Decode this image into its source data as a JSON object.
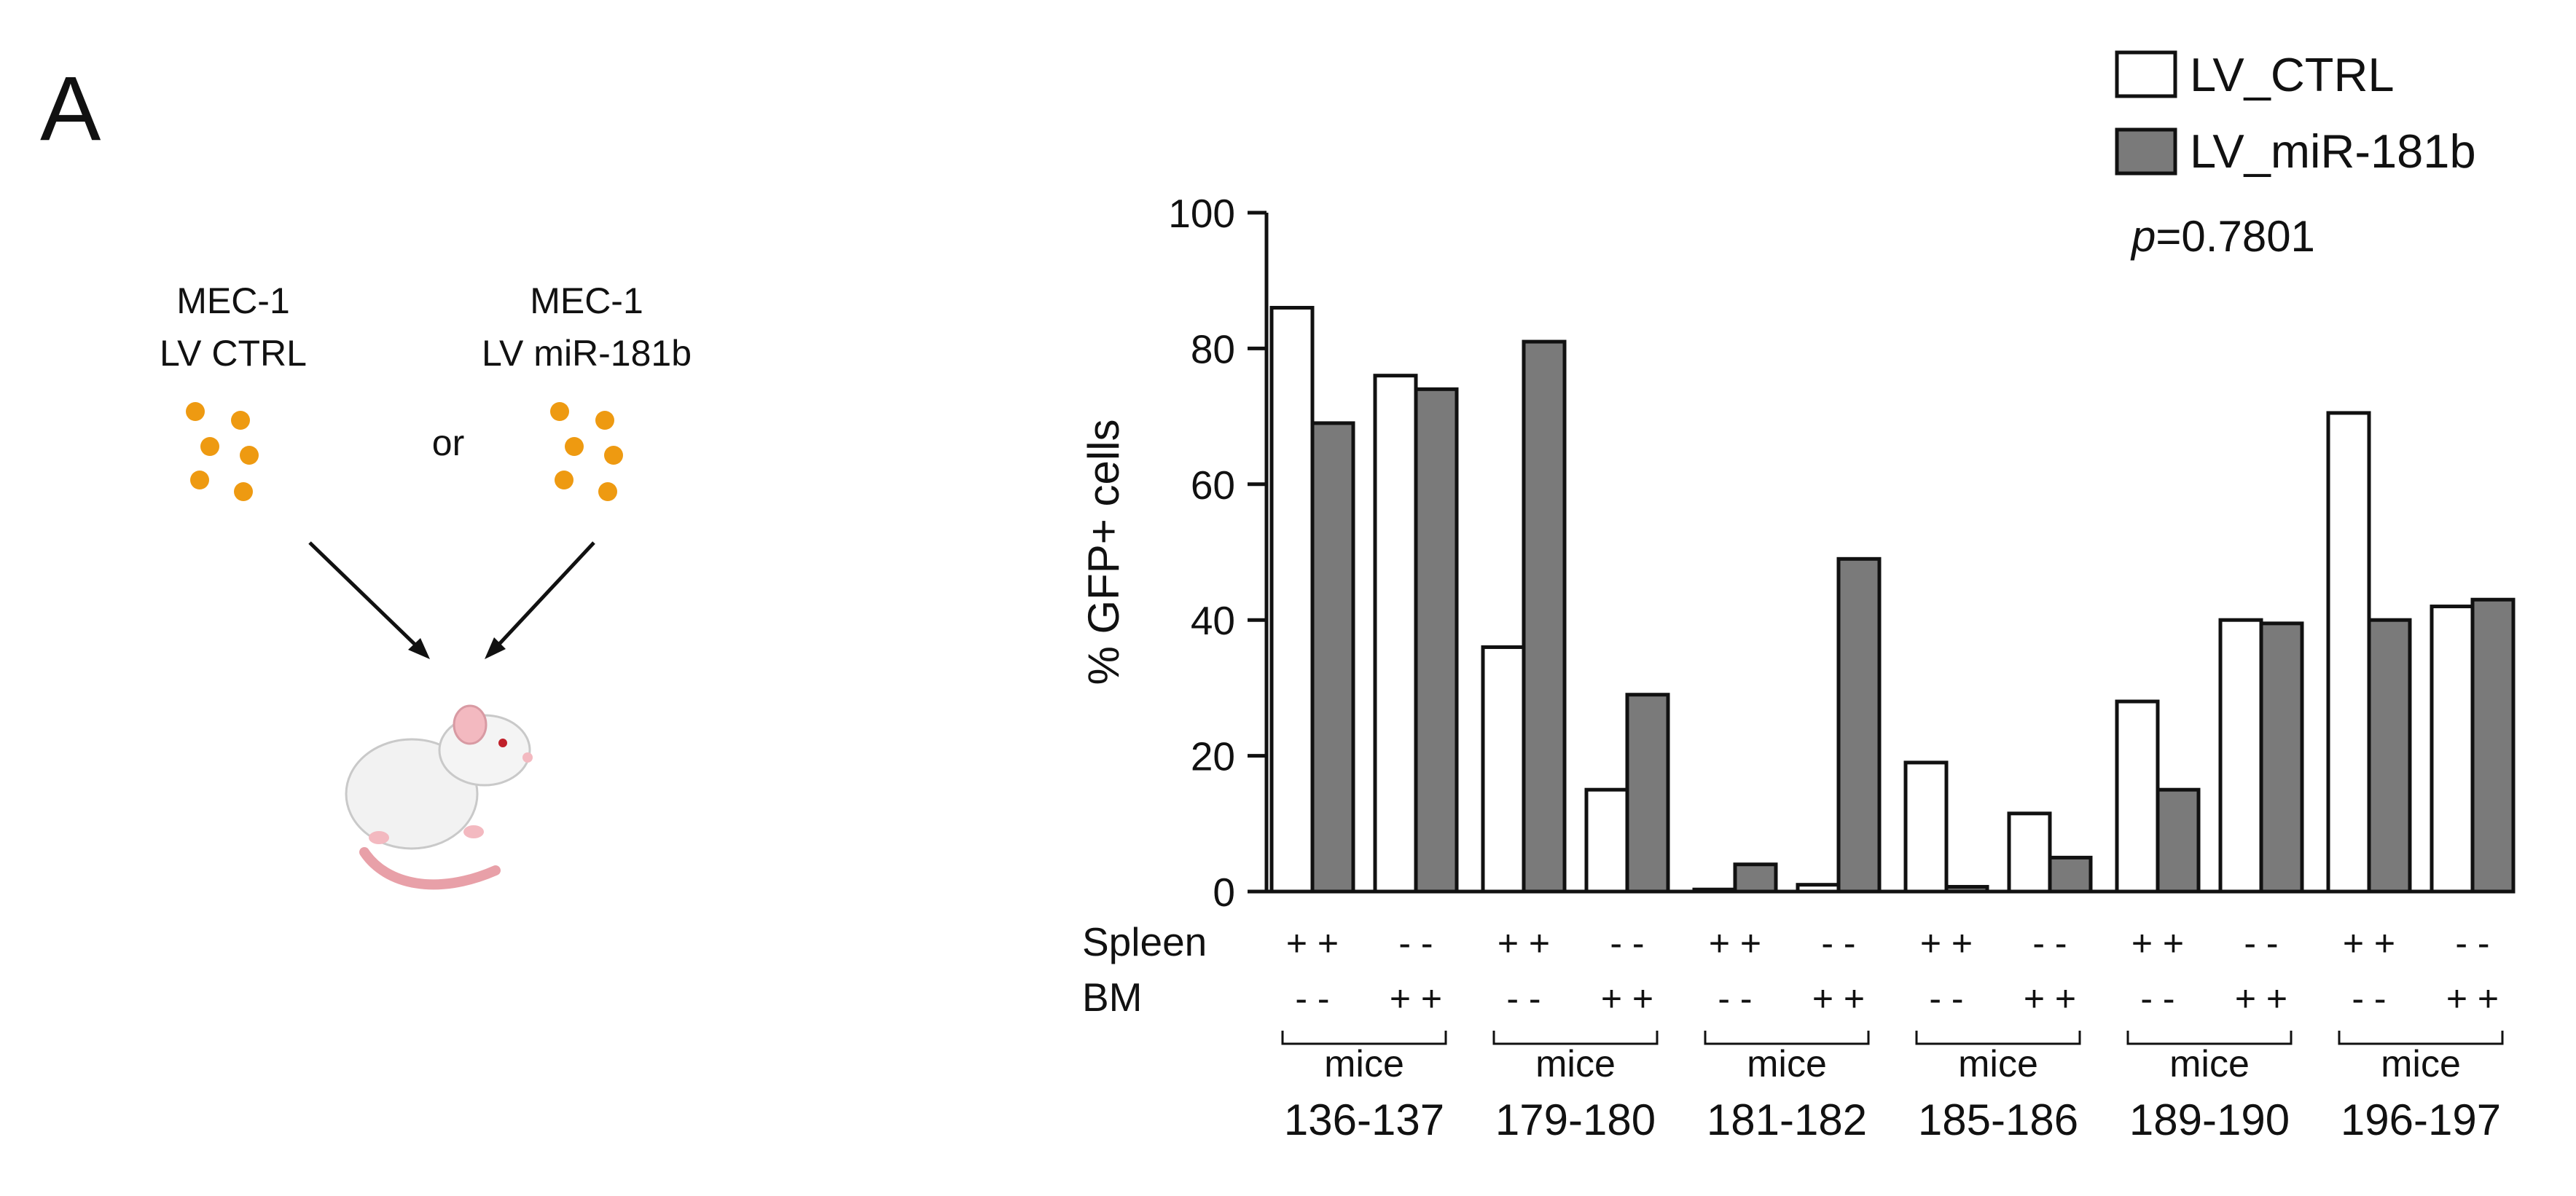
{
  "panel_label": "A",
  "schematic": {
    "left_label_line1": "MEC-1",
    "left_label_line2": "LV CTRL",
    "right_label_line1": "MEC-1",
    "right_label_line2": "LV miR-181b",
    "or_text": "or",
    "cell_color": "#ee9a11",
    "mouse_icon": "mouse-icon"
  },
  "chart_data": {
    "type": "bar",
    "title": "",
    "xlabel": "",
    "ylabel": "% GFP+ cells",
    "ylim": [
      0,
      100
    ],
    "yticks": [
      "0",
      "20",
      "40",
      "60",
      "80",
      "100"
    ],
    "grid": false,
    "legend_position": "top-right",
    "annotation_italic": "p",
    "annotation_rest": "=0.7801",
    "row_labels": [
      "Spleen",
      "BM"
    ],
    "group_word": "mice",
    "groups": [
      {
        "name": "136-137",
        "pairs": [
          {
            "spleen": "+ +",
            "bm": "- -",
            "ctrl": 86,
            "mir": 69
          },
          {
            "spleen": "- -",
            "bm": "+ +",
            "ctrl": 76,
            "mir": 74
          }
        ]
      },
      {
        "name": "179-180",
        "pairs": [
          {
            "spleen": "+ +",
            "bm": "- -",
            "ctrl": 36,
            "mir": 81
          },
          {
            "spleen": "- -",
            "bm": "+ +",
            "ctrl": 15,
            "mir": 29
          }
        ]
      },
      {
        "name": "181-182",
        "pairs": [
          {
            "spleen": "+ +",
            "bm": "- -",
            "ctrl": 0.3,
            "mir": 4
          },
          {
            "spleen": "- -",
            "bm": "+ +",
            "ctrl": 1,
            "mir": 49
          }
        ]
      },
      {
        "name": "185-186",
        "pairs": [
          {
            "spleen": "+ +",
            "bm": "- -",
            "ctrl": 19,
            "mir": 0.7
          },
          {
            "spleen": "- -",
            "bm": "+ +",
            "ctrl": 11.5,
            "mir": 5
          }
        ]
      },
      {
        "name": "189-190",
        "pairs": [
          {
            "spleen": "+ +",
            "bm": "- -",
            "ctrl": 28,
            "mir": 15
          },
          {
            "spleen": "- -",
            "bm": "+ +",
            "ctrl": 40,
            "mir": 39.5
          }
        ]
      },
      {
        "name": "196-197",
        "pairs": [
          {
            "spleen": "+ +",
            "bm": "- -",
            "ctrl": 70.5,
            "mir": 40
          },
          {
            "spleen": "- -",
            "bm": "+ +",
            "ctrl": 42,
            "mir": 43
          }
        ]
      }
    ],
    "series": [
      {
        "name": "LV_CTRL",
        "color": "#ffffff"
      },
      {
        "name": "LV_miR-181b",
        "color": "#7a7a7a"
      }
    ]
  }
}
